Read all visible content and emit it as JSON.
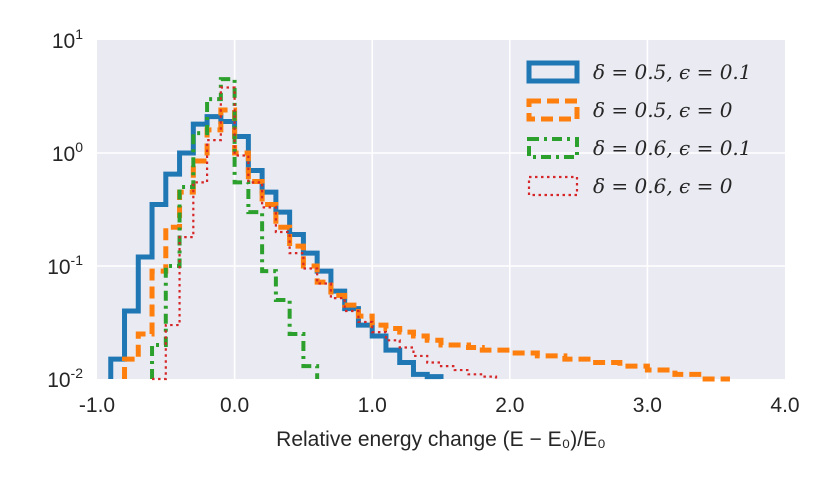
{
  "chart_data": {
    "type": "step-histogram",
    "xlabel": "Relative energy change (E − E₀)/E₀",
    "ylabel": "",
    "xlim": [
      -1.0,
      4.0
    ],
    "ylim": [
      0.01,
      10
    ],
    "yscale": "log",
    "xticks": [
      "-1.0",
      "0.0",
      "1.0",
      "2.0",
      "3.0",
      "4.0"
    ],
    "xtick_values": [
      -1.0,
      0.0,
      1.0,
      2.0,
      3.0,
      4.0
    ],
    "yticks": [
      {
        "base": "10",
        "exp": "1",
        "value": 10
      },
      {
        "base": "10",
        "exp": "0",
        "value": 1
      },
      {
        "base": "10",
        "exp": "-1",
        "value": 0.1
      },
      {
        "base": "10",
        "exp": "-2",
        "value": 0.01
      }
    ],
    "grid": true,
    "legend_position": "top-right",
    "background": "#eaeaf2",
    "series": [
      {
        "name": "δ = 0.5, ϵ = 0.1",
        "color": "#1f77b4",
        "style": "solid",
        "x": [
          -0.9,
          -0.8,
          -0.7,
          -0.6,
          -0.5,
          -0.4,
          -0.3,
          -0.2,
          -0.1,
          0.0,
          0.1,
          0.2,
          0.3,
          0.4,
          0.5,
          0.6,
          0.7,
          0.8,
          0.9,
          1.0,
          1.1,
          1.2,
          1.3,
          1.4,
          1.5
        ],
        "y": [
          0.015,
          0.04,
          0.12,
          0.35,
          0.65,
          1.0,
          1.8,
          2.1,
          1.9,
          1.4,
          0.7,
          0.45,
          0.3,
          0.19,
          0.13,
          0.09,
          0.06,
          0.042,
          0.03,
          0.024,
          0.018,
          0.014,
          0.011,
          0.0105
        ]
      },
      {
        "name": "δ = 0.5, ϵ = 0",
        "color": "#ff7f0e",
        "style": "dashed",
        "x": [
          -0.8,
          -0.7,
          -0.6,
          -0.5,
          -0.4,
          -0.3,
          -0.2,
          -0.1,
          0.0,
          0.1,
          0.2,
          0.3,
          0.4,
          0.5,
          0.6,
          0.7,
          0.8,
          0.9,
          1.0,
          1.1,
          1.2,
          1.3,
          1.4,
          1.5,
          1.6,
          1.7,
          1.8,
          1.9,
          2.0,
          2.1,
          2.2,
          2.3,
          2.4,
          2.5,
          2.6,
          2.7,
          2.8,
          2.9,
          3.0,
          3.1,
          3.2,
          3.3,
          3.4,
          3.5,
          3.6
        ],
        "y": [
          0.015,
          0.025,
          0.09,
          0.22,
          0.45,
          0.85,
          1.6,
          2.4,
          1.0,
          0.56,
          0.35,
          0.22,
          0.15,
          0.1,
          0.072,
          0.055,
          0.045,
          0.036,
          0.03,
          0.028,
          0.026,
          0.024,
          0.022,
          0.02,
          0.02,
          0.019,
          0.018,
          0.018,
          0.017,
          0.017,
          0.016,
          0.016,
          0.015,
          0.015,
          0.014,
          0.014,
          0.013,
          0.013,
          0.012,
          0.012,
          0.011,
          0.011,
          0.01,
          0.01
        ]
      },
      {
        "name": "δ = 0.6, ϵ = 0.1",
        "color": "#2ca02c",
        "style": "dashdot",
        "x": [
          -0.6,
          -0.5,
          -0.4,
          -0.3,
          -0.2,
          -0.1,
          0.0,
          0.1,
          0.2,
          0.3,
          0.4,
          0.5,
          0.6
        ],
        "y": [
          0.02,
          0.1,
          0.5,
          1.5,
          3.0,
          4.5,
          0.55,
          0.3,
          0.09,
          0.05,
          0.025,
          0.013
        ]
      },
      {
        "name": "δ = 0.6, ϵ = 0",
        "color": "#d62728",
        "style": "dotted",
        "x": [
          -0.6,
          -0.5,
          -0.4,
          -0.3,
          -0.2,
          -0.1,
          0.0,
          0.1,
          0.2,
          0.3,
          0.4,
          0.5,
          0.6,
          0.7,
          0.8,
          0.9,
          1.0,
          1.1,
          1.2,
          1.3,
          1.4,
          1.5,
          1.6,
          1.7,
          1.8,
          1.9
        ],
        "y": [
          0.01,
          0.03,
          0.18,
          0.55,
          1.3,
          3.8,
          0.95,
          0.55,
          0.33,
          0.2,
          0.13,
          0.095,
          0.07,
          0.052,
          0.04,
          0.032,
          0.026,
          0.022,
          0.019,
          0.016,
          0.014,
          0.013,
          0.012,
          0.011,
          0.0105
        ]
      }
    ]
  }
}
